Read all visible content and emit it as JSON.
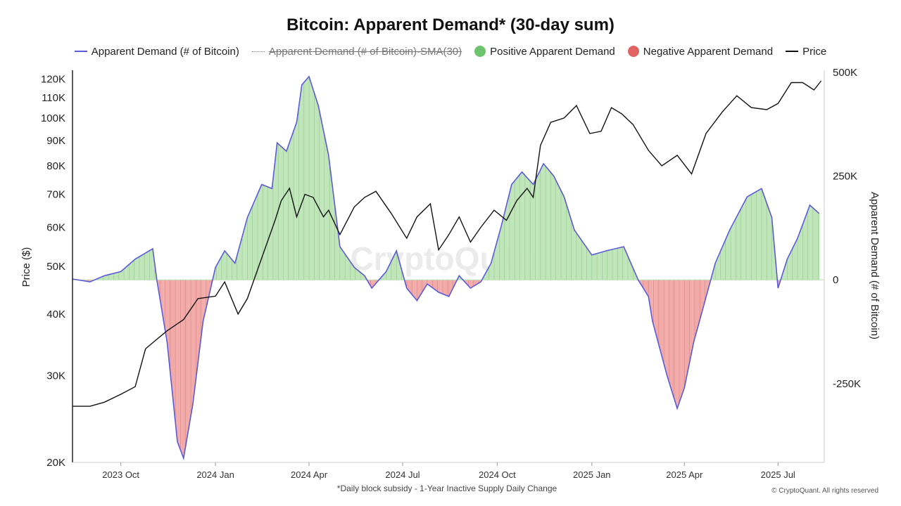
{
  "chart_data": {
    "type": "area",
    "title": "Bitcoin: Apparent Demand* (30-day sum)",
    "legend": [
      {
        "label": "Apparent Demand (# of Bitcoin)",
        "style": "line",
        "color": "#5b5bd6"
      },
      {
        "label": "Apparent Demand (# of Bitcoin)-SMA(30)",
        "style": "dotted-struck",
        "color": "#777777"
      },
      {
        "label": "Positive Apparent Demand",
        "style": "dot",
        "color": "#6cc46c"
      },
      {
        "label": "Negative Apparent Demand",
        "style": "dot",
        "color": "#e06464"
      },
      {
        "label": "Price",
        "style": "line",
        "color": "#111111"
      }
    ],
    "legend_placement": "top",
    "left_axis": {
      "label": "Price ($)",
      "scale": "log",
      "range": [
        20000,
        125000
      ],
      "ticks": [
        {
          "v": 20000,
          "t": "20K"
        },
        {
          "v": 30000,
          "t": "30K"
        },
        {
          "v": 40000,
          "t": "40K"
        },
        {
          "v": 50000,
          "t": "50K"
        },
        {
          "v": 60000,
          "t": "60K"
        },
        {
          "v": 70000,
          "t": "70K"
        },
        {
          "v": 80000,
          "t": "80K"
        },
        {
          "v": 90000,
          "t": "90K"
        },
        {
          "v": 100000,
          "t": "100K"
        },
        {
          "v": 110000,
          "t": "110K"
        },
        {
          "v": 120000,
          "t": "120K"
        }
      ]
    },
    "right_axis": {
      "label": "Apparent Demand (# of Bitcoin)",
      "scale": "linear",
      "range": [
        -440000,
        505000
      ],
      "ticks": [
        {
          "v": 500000,
          "t": "500K"
        },
        {
          "v": 250000,
          "t": "250K"
        },
        {
          "v": 0,
          "t": "0"
        },
        {
          "v": -250000,
          "t": "-250K"
        }
      ]
    },
    "x_axis": {
      "range": [
        "2023-08-15",
        "2025-08-15"
      ],
      "ticks": [
        {
          "d": "2023-10-01",
          "t": "2023 Oct"
        },
        {
          "d": "2024-01-01",
          "t": "2024 Jan"
        },
        {
          "d": "2024-04-01",
          "t": "2024 Apr"
        },
        {
          "d": "2024-07-01",
          "t": "2024 Jul"
        },
        {
          "d": "2024-10-01",
          "t": "2024 Oct"
        },
        {
          "d": "2025-01-01",
          "t": "2025 Jan"
        },
        {
          "d": "2025-04-01",
          "t": "2025 Apr"
        },
        {
          "d": "2025-07-01",
          "t": "2025 Jul"
        }
      ]
    },
    "grid": false,
    "demand": {
      "x": [
        "2023-08-15",
        "2023-09-01",
        "2023-09-15",
        "2023-10-01",
        "2023-10-15",
        "2023-11-01",
        "2023-11-05",
        "2023-11-15",
        "2023-11-25",
        "2023-12-01",
        "2023-12-10",
        "2023-12-20",
        "2024-01-01",
        "2024-01-10",
        "2024-01-20",
        "2024-02-01",
        "2024-02-15",
        "2024-02-25",
        "2024-03-01",
        "2024-03-10",
        "2024-03-20",
        "2024-03-25",
        "2024-04-01",
        "2024-04-10",
        "2024-04-20",
        "2024-05-01",
        "2024-05-15",
        "2024-05-25",
        "2024-06-01",
        "2024-06-15",
        "2024-06-25",
        "2024-07-05",
        "2024-07-15",
        "2024-07-25",
        "2024-08-05",
        "2024-08-15",
        "2024-08-25",
        "2024-09-05",
        "2024-09-15",
        "2024-09-25",
        "2024-10-05",
        "2024-10-15",
        "2024-10-25",
        "2024-11-05",
        "2024-11-15",
        "2024-11-25",
        "2024-12-05",
        "2024-12-15",
        "2025-01-01",
        "2025-01-15",
        "2025-02-01",
        "2025-02-15",
        "2025-02-25",
        "2025-03-01",
        "2025-03-15",
        "2025-03-25",
        "2025-04-01",
        "2025-04-10",
        "2025-04-20",
        "2025-05-01",
        "2025-05-15",
        "2025-06-01",
        "2025-06-15",
        "2025-06-25",
        "2025-07-01",
        "2025-07-10",
        "2025-07-20",
        "2025-08-01",
        "2025-08-10"
      ],
      "y": [
        2000,
        -5000,
        10000,
        20000,
        50000,
        75000,
        0,
        -150000,
        -390000,
        -430000,
        -300000,
        -100000,
        30000,
        70000,
        40000,
        150000,
        230000,
        220000,
        330000,
        310000,
        380000,
        470000,
        490000,
        420000,
        300000,
        80000,
        30000,
        10000,
        -20000,
        20000,
        70000,
        -20000,
        -50000,
        -10000,
        -30000,
        -40000,
        10000,
        -20000,
        -5000,
        40000,
        130000,
        230000,
        260000,
        230000,
        280000,
        250000,
        200000,
        120000,
        60000,
        70000,
        80000,
        0,
        -40000,
        -100000,
        -230000,
        -310000,
        -260000,
        -150000,
        -60000,
        40000,
        120000,
        200000,
        220000,
        150000,
        -20000,
        50000,
        100000,
        180000,
        160000
      ]
    },
    "price": {
      "x": [
        "2023-08-15",
        "2023-09-01",
        "2023-09-15",
        "2023-10-01",
        "2023-10-15",
        "2023-10-25",
        "2023-11-01",
        "2023-11-15",
        "2023-12-01",
        "2023-12-15",
        "2024-01-01",
        "2024-01-10",
        "2024-01-23",
        "2024-02-01",
        "2024-02-15",
        "2024-02-28",
        "2024-03-05",
        "2024-03-13",
        "2024-03-20",
        "2024-03-28",
        "2024-04-05",
        "2024-04-15",
        "2024-04-20",
        "2024-05-01",
        "2024-05-15",
        "2024-05-25",
        "2024-06-05",
        "2024-06-20",
        "2024-07-05",
        "2024-07-15",
        "2024-07-28",
        "2024-08-05",
        "2024-08-15",
        "2024-08-25",
        "2024-09-05",
        "2024-09-15",
        "2024-09-28",
        "2024-10-10",
        "2024-10-20",
        "2024-10-30",
        "2024-11-05",
        "2024-11-12",
        "2024-11-22",
        "2024-12-05",
        "2024-12-17",
        "2024-12-30",
        "2025-01-10",
        "2025-01-20",
        "2025-01-30",
        "2025-02-10",
        "2025-02-25",
        "2025-03-10",
        "2025-03-25",
        "2025-04-08",
        "2025-04-22",
        "2025-05-08",
        "2025-05-22",
        "2025-06-05",
        "2025-06-20",
        "2025-07-01",
        "2025-07-14",
        "2025-07-25",
        "2025-08-05",
        "2025-08-12"
      ],
      "y": [
        26000,
        26000,
        26500,
        27500,
        28500,
        34000,
        35000,
        37000,
        39000,
        43000,
        43500,
        46500,
        40000,
        43000,
        52000,
        62000,
        68000,
        72000,
        63000,
        70000,
        69000,
        63000,
        65000,
        58000,
        66000,
        69000,
        71000,
        64000,
        57000,
        63000,
        67000,
        54000,
        58000,
        63000,
        56000,
        60000,
        65000,
        62000,
        68000,
        72000,
        69000,
        88000,
        98000,
        100000,
        106000,
        93000,
        94000,
        105000,
        102000,
        97000,
        86000,
        80000,
        84000,
        77000,
        93000,
        103000,
        111000,
        105000,
        104000,
        107000,
        118000,
        118000,
        114000,
        119000
      ]
    },
    "annotations": [
      {
        "text": "*Daily block subsidy - 1-Year Inactive Supply Daily Change"
      },
      {
        "text": "© CryptoQuant. All rights reserved"
      },
      {
        "text": "CryptoQuant",
        "role": "watermark"
      }
    ]
  }
}
